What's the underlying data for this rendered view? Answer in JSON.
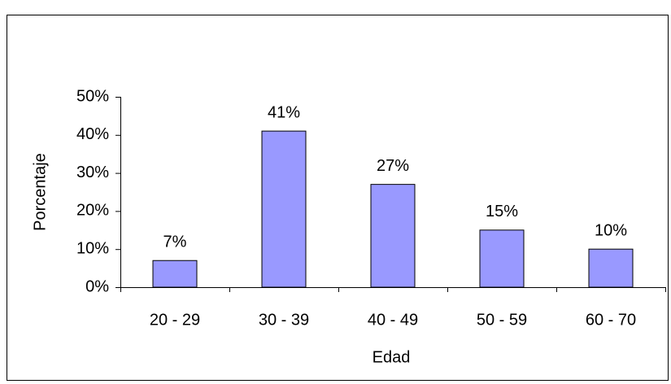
{
  "chart_data": {
    "type": "bar",
    "x_label": "Edad",
    "y_label": "Porcentaje",
    "categories": [
      "20 - 29",
      "30 - 39",
      "40 - 49",
      "50 - 59",
      "60 - 70"
    ],
    "values": [
      7,
      41,
      27,
      15,
      10
    ],
    "value_labels": [
      "7%",
      "41%",
      "27%",
      "15%",
      "10%"
    ],
    "color": "#9999ff",
    "ylim": [
      0,
      50
    ],
    "yticks": [
      {
        "value": 0,
        "label": "0%"
      },
      {
        "value": 10,
        "label": "10%"
      },
      {
        "value": 20,
        "label": "20%"
      },
      {
        "value": 30,
        "label": "30%"
      },
      {
        "value": 40,
        "label": "40%"
      },
      {
        "value": 50,
        "label": "50%"
      }
    ],
    "grid": false
  }
}
